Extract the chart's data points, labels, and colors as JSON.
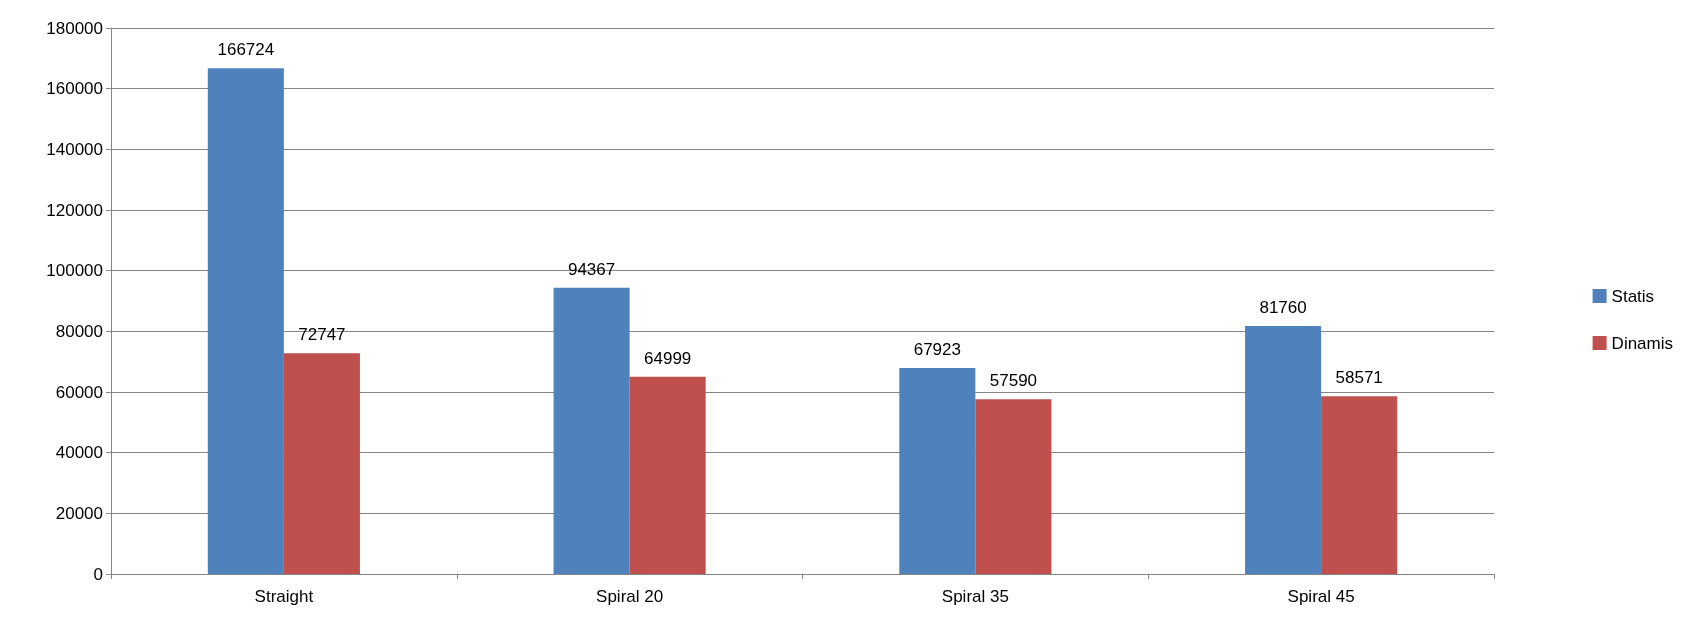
{
  "chart_data": {
    "type": "bar",
    "categories": [
      "Straight",
      "Spiral 20",
      "Spiral 35",
      "Spiral 45"
    ],
    "series": [
      {
        "name": "Statis",
        "color": "#4f81bd",
        "values": [
          166724,
          94367,
          67923,
          81760
        ]
      },
      {
        "name": "Dinamis",
        "color": "#c0504d",
        "values": [
          72747,
          64999,
          57590,
          58571
        ]
      }
    ],
    "ylim": [
      0,
      180000
    ],
    "yticks": [
      0,
      20000,
      40000,
      60000,
      80000,
      100000,
      120000,
      140000,
      160000,
      180000
    ],
    "grid": "y",
    "legend": "right",
    "data_labels": true
  }
}
